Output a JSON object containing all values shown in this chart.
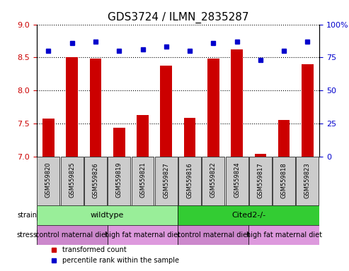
{
  "title": "GDS3724 / ILMN_2835287",
  "samples": [
    "GSM559820",
    "GSM559825",
    "GSM559826",
    "GSM559819",
    "GSM559821",
    "GSM559827",
    "GSM559816",
    "GSM559822",
    "GSM559824",
    "GSM559817",
    "GSM559818",
    "GSM559823"
  ],
  "bar_values": [
    7.57,
    8.5,
    8.48,
    7.44,
    7.63,
    8.38,
    7.58,
    8.48,
    8.62,
    7.04,
    7.55,
    8.4
  ],
  "dot_values": [
    80,
    86,
    87,
    80,
    81,
    83,
    80,
    86,
    87,
    73,
    80,
    87
  ],
  "ylim_left": [
    7.0,
    9.0
  ],
  "ylim_right": [
    0,
    100
  ],
  "yticks_left": [
    7.0,
    7.5,
    8.0,
    8.5,
    9.0
  ],
  "yticks_right": [
    0,
    25,
    50,
    75,
    100
  ],
  "bar_color": "#cc0000",
  "dot_color": "#0000cc",
  "bar_width": 0.5,
  "wildtype_color": "#99ee99",
  "cited_color": "#33cc33",
  "stress_color1": "#cc88cc",
  "stress_color2": "#dd99dd",
  "sample_box_color": "#cccccc",
  "legend_items": [
    {
      "label": "transformed count",
      "color": "#cc0000"
    },
    {
      "label": "percentile rank within the sample",
      "color": "#0000cc"
    }
  ],
  "title_fontsize": 11,
  "tick_fontsize": 8,
  "label_fontsize": 7,
  "strain_fontsize": 8,
  "stress_fontsize": 7
}
